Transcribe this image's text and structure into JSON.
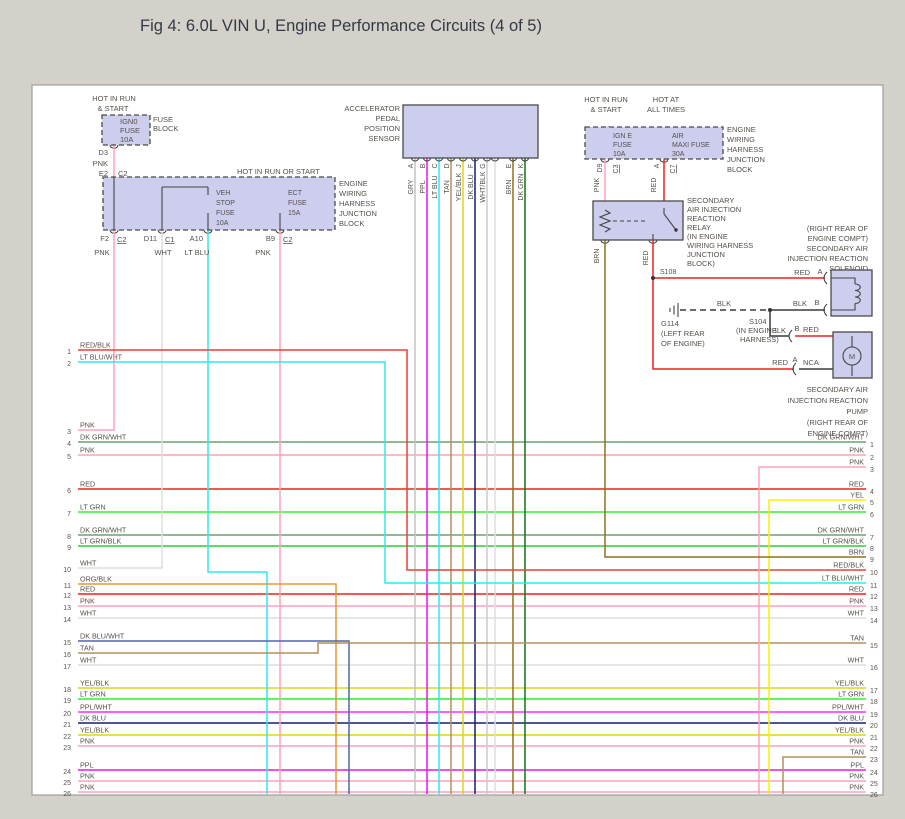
{
  "title": "Fig 4: 6.0L VIN U, Engine Performance Circuits (4 of 5)",
  "colors": {
    "RED": "#f51f1f",
    "RED_BLK": "#ea4138",
    "PNK": "#ffa2ba",
    "LT_BLU": "#2de9f2",
    "LT_BLU_WHT": "#2de9f2",
    "DK_GRN_WHT": "#6fa071",
    "DK_GRN": "#157015",
    "LT_GRN": "#31ef31",
    "LT_GRN_BLK": "#28d228",
    "WHT": "#dedede",
    "GRY": "#c3c3c3",
    "WHT_BLK": "#cbcbcb",
    "ORG_BLK": "#e69537",
    "DK_BLU_WHT": "#5363aa",
    "DK_BLU": "#141f73",
    "TAN": "#b3905e",
    "YEL": "#fdf000",
    "YEL_BLK": "#dcd51f",
    "PPL": "#ee13ee",
    "PPL_WHT": "#fb2bfb",
    "BRN": "#8d701f",
    "BLK": "#3a3a3a"
  },
  "fb": {
    "hot": [
      "HOT IN RUN",
      "& START"
    ],
    "name": [
      "FUSE",
      "BLOCK"
    ],
    "fuse": [
      "IGN0",
      "FUSE",
      "10A"
    ],
    "pin_out": "D3",
    "wire": "PNK",
    "pin_in": "E2",
    "conn": "C2"
  },
  "jl": {
    "heading": "HOT IN RUN OR START",
    "name": [
      "ENGINE",
      "WIRING",
      "HARNESS",
      "JUNCTION",
      "BLOCK"
    ],
    "fuse1": [
      "VEH",
      "STOP",
      "FUSE",
      "10A"
    ],
    "fuse2": [
      "ECT",
      "FUSE",
      "15A"
    ],
    "exits": [
      {
        "pin": "F2",
        "conn": "C2",
        "wire": "PNK"
      },
      {
        "pin": "D11",
        "conn": "C1",
        "wire": "WHT"
      },
      {
        "pin": "A10",
        "conn": "",
        "wire": "LT BLU"
      },
      {
        "pin": "B9",
        "conn": "C2",
        "wire": "PNK"
      }
    ]
  },
  "aps": {
    "name": [
      "ACCELERATOR",
      "PEDAL",
      "POSITION",
      "SENSOR"
    ],
    "pins": [
      {
        "signal": "SENS 3 RT",
        "letter": "A",
        "wire": "GRY",
        "color": "GRY"
      },
      {
        "signal": "SENS 2 RT",
        "letter": "B",
        "wire": "PPL",
        "color": "PPL"
      },
      {
        "signal": "APP SENSE",
        "letter": "C",
        "wire": "LT BLU",
        "color": "LT_BLU"
      },
      {
        "signal": "5V",
        "letter": "D",
        "wire": "TAN",
        "color": "TAN"
      },
      {
        "signal": "5V",
        "letter": "J",
        "wire": "YEL/BLK",
        "color": "YEL_BLK"
      },
      {
        "signal": "APP SENS",
        "letter": "F",
        "wire": "DK BLU",
        "color": "DK_BLU"
      },
      {
        "signal": "5V",
        "letter": "G",
        "wire": "WHT/BLK",
        "color": "WHT_BLK"
      },
      {
        "signal": "",
        "letter": "",
        "wire": "",
        "color": "WHT"
      },
      {
        "signal": "SENS 1 RT",
        "letter": "E",
        "wire": "BRN",
        "color": "BRN"
      },
      {
        "signal": "APP SENS",
        "letter": "K",
        "wire": "DK GRN",
        "color": "DK_GRN"
      }
    ]
  },
  "jr": {
    "hot1": [
      "HOT IN RUN",
      "& START"
    ],
    "hot2": [
      "HOT AT",
      "ALL TIMES"
    ],
    "name": [
      "ENGINE",
      "WIRING",
      "HARNESS",
      "JUNCTION",
      "BLOCK"
    ],
    "fuse1": [
      "IGN E",
      "FUSE",
      "10A"
    ],
    "fuse2": [
      "AIR",
      "MAXI FUSE",
      "30A"
    ],
    "out1": {
      "pin": "D9",
      "conn": "C3",
      "wire": "PNK"
    },
    "out2": {
      "pin": "A",
      "conn": "C7",
      "wire": "RED"
    }
  },
  "relay": {
    "name": [
      "SECONDARY",
      "AIR INJECTION",
      "REACTION",
      "RELAY",
      "(IN ENGINE",
      "WIRING HARNESS",
      "JUNCTION",
      "BLOCK)"
    ],
    "out_left": "BRN",
    "out_right": "RED",
    "splice": "S108"
  },
  "sol": {
    "name": [
      "(RIGHT REAR OF",
      "ENGINE COMPT)",
      "SECONDARY AIR",
      "INJECTION REACTION",
      "SOLENOID"
    ],
    "pin_a": {
      "wire": "RED",
      "pin": "A"
    },
    "pin_b": {
      "wire": "BLK",
      "pin": "B"
    }
  },
  "gnd": {
    "name": "G114",
    "loc": [
      "(LEFT REAR",
      "OF ENGINE)"
    ],
    "wire": "BLK"
  },
  "s104": {
    "name": "S104",
    "loc": [
      "(IN ENGINE",
      "HARNESS)"
    ]
  },
  "pump": {
    "name": [
      "SECONDARY AIR",
      "INJECTION REACTION",
      "PUMP",
      "(RIGHT REAR OF",
      "ENGINE COMPT)"
    ],
    "pin_b": {
      "w1": "BLK",
      "pin": "B",
      "w2": "RED"
    },
    "pin_a": {
      "w1": "RED",
      "pin": "A",
      "w2": "NCA"
    },
    "motor": "M"
  },
  "left_rows": [
    {
      "n": "1",
      "label": "RED/BLK",
      "c": "RED_BLK"
    },
    {
      "n": "2",
      "label": "LT BLU/WHT",
      "c": "LT_BLU_WHT"
    },
    {
      "n": "3",
      "label": "PNK",
      "c": "PNK"
    },
    {
      "n": "4",
      "label": "DK GRN/WHT",
      "c": "DK_GRN_WHT"
    },
    {
      "n": "5",
      "label": "PNK",
      "c": "PNK"
    },
    {
      "n": "6",
      "label": "RED",
      "c": "RED"
    },
    {
      "n": "7",
      "label": "LT GRN",
      "c": "LT_GRN"
    },
    {
      "n": "8",
      "label": "DK GRN/WHT",
      "c": "DK_GRN_WHT"
    },
    {
      "n": "9",
      "label": "LT GRN/BLK",
      "c": "LT_GRN_BLK"
    },
    {
      "n": "10",
      "label": "WHT",
      "c": "WHT"
    },
    {
      "n": "11",
      "label": "ORG/BLK",
      "c": "ORG_BLK"
    },
    {
      "n": "12",
      "label": "RED",
      "c": "RED"
    },
    {
      "n": "13",
      "label": "PNK",
      "c": "PNK"
    },
    {
      "n": "14",
      "label": "WHT",
      "c": "WHT"
    },
    {
      "n": "15",
      "label": "DK BLU/WHT",
      "c": "DK_BLU_WHT"
    },
    {
      "n": "16",
      "label": "TAN",
      "c": "TAN"
    },
    {
      "n": "17",
      "label": "WHT",
      "c": "WHT"
    },
    {
      "n": "18",
      "label": "YEL/BLK",
      "c": "YEL_BLK"
    },
    {
      "n": "19",
      "label": "LT GRN",
      "c": "LT_GRN"
    },
    {
      "n": "20",
      "label": "PPL/WHT",
      "c": "PPL_WHT"
    },
    {
      "n": "21",
      "label": "DK BLU",
      "c": "DK_BLU"
    },
    {
      "n": "22",
      "label": "YEL/BLK",
      "c": "YEL_BLK"
    },
    {
      "n": "23",
      "label": "PNK",
      "c": "PNK"
    },
    {
      "n": "24",
      "label": "PPL",
      "c": "PPL"
    },
    {
      "n": "25",
      "label": "PNK",
      "c": "PNK"
    },
    {
      "n": "26",
      "label": "PNK",
      "c": "PNK"
    }
  ],
  "right_rows": [
    {
      "n": "1",
      "label": "DK GRN/WHT",
      "c": "DK_GRN_WHT"
    },
    {
      "n": "2",
      "label": "PNK",
      "c": "PNK"
    },
    {
      "n": "3",
      "label": "PNK",
      "c": "PNK"
    },
    {
      "n": "4",
      "label": "RED",
      "c": "RED"
    },
    {
      "n": "5",
      "label": "YEL",
      "c": "YEL"
    },
    {
      "n": "6",
      "label": "LT GRN",
      "c": "LT_GRN"
    },
    {
      "n": "7",
      "label": "DK GRN/WHT",
      "c": "DK_GRN_WHT"
    },
    {
      "n": "8",
      "label": "LT GRN/BLK",
      "c": "LT_GRN_BLK"
    },
    {
      "n": "9",
      "label": "BRN",
      "c": "BRN"
    },
    {
      "n": "10",
      "label": "RED/BLK",
      "c": "RED_BLK"
    },
    {
      "n": "11",
      "label": "LT BLU/WHT",
      "c": "LT_BLU_WHT"
    },
    {
      "n": "12",
      "label": "RED",
      "c": "RED"
    },
    {
      "n": "13",
      "label": "PNK",
      "c": "PNK"
    },
    {
      "n": "14",
      "label": "WHT",
      "c": "WHT"
    },
    {
      "n": "15",
      "label": "TAN",
      "c": "TAN"
    },
    {
      "n": "16",
      "label": "WHT",
      "c": "WHT"
    },
    {
      "n": "17",
      "label": "YEL/BLK",
      "c": "YEL_BLK"
    },
    {
      "n": "18",
      "label": "LT GRN",
      "c": "LT_GRN"
    },
    {
      "n": "19",
      "label": "PPL/WHT",
      "c": "PPL_WHT"
    },
    {
      "n": "20",
      "label": "DK BLU",
      "c": "DK_BLU"
    },
    {
      "n": "21",
      "label": "YEL/BLK",
      "c": "YEL_BLK"
    },
    {
      "n": "22",
      "label": "PNK",
      "c": "PNK"
    },
    {
      "n": "23",
      "label": "TAN",
      "c": "TAN"
    },
    {
      "n": "24",
      "label": "PPL",
      "c": "PPL"
    },
    {
      "n": "25",
      "label": "PNK",
      "c": "PNK"
    },
    {
      "n": "26",
      "label": "PNK",
      "c": "PNK"
    }
  ]
}
